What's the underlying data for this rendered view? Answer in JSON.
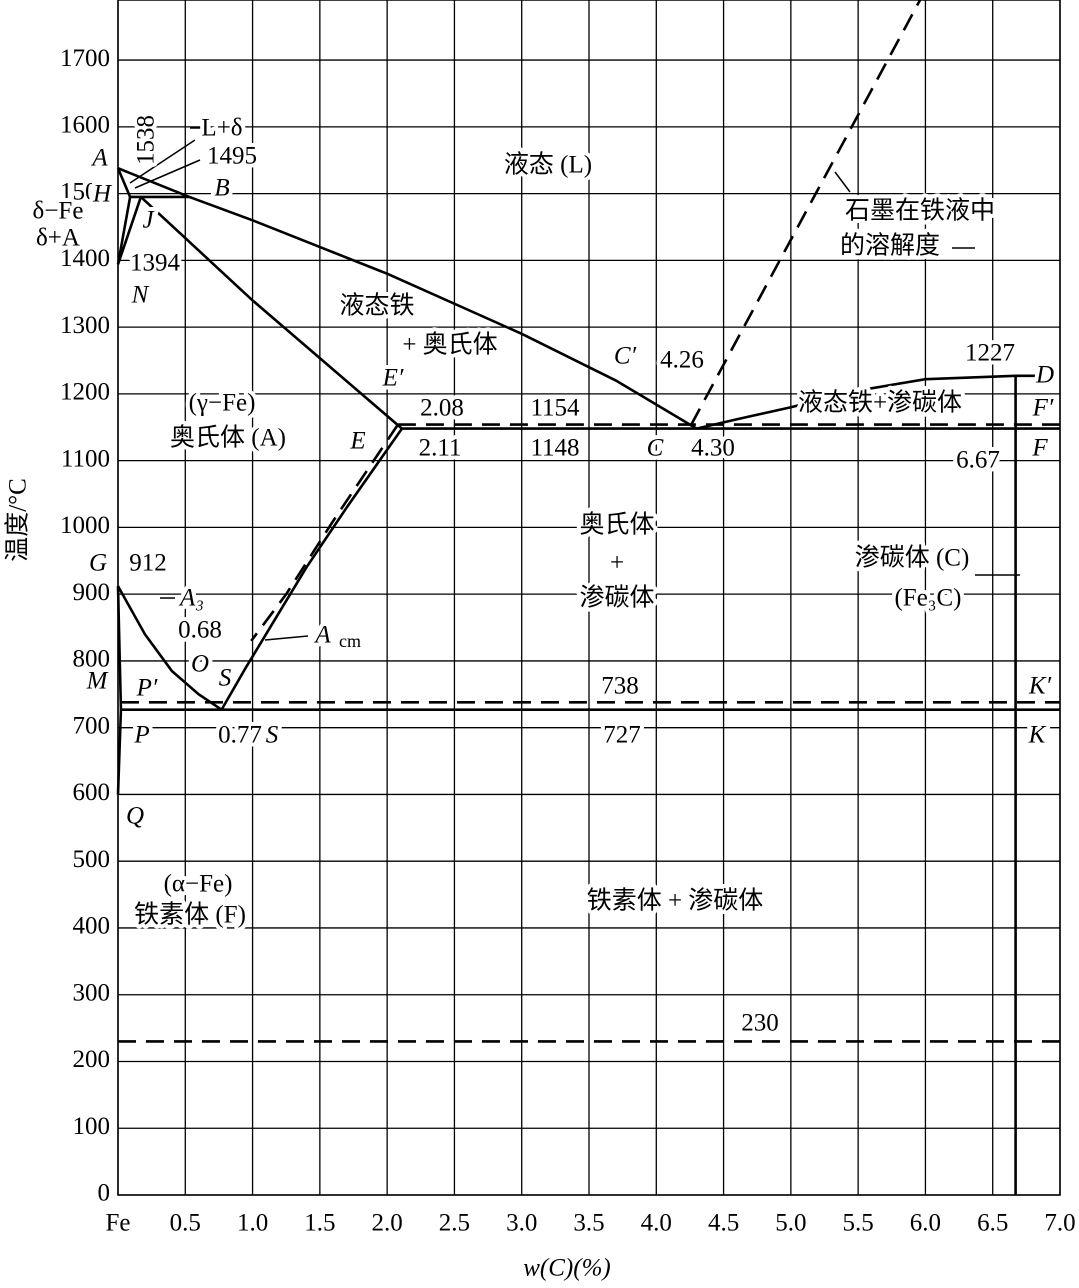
{
  "chart_data": {
    "type": "line",
    "x_label": "w(C)(%)",
    "y_label": "温度/°C",
    "xlim": [
      0,
      7
    ],
    "ylim": [
      0,
      1790
    ],
    "xticks": [
      {
        "value": 0,
        "label": "Fe"
      },
      0.5,
      {
        "value": 1,
        "label": "1.0"
      },
      1.5,
      {
        "value": 2,
        "label": "2.0"
      },
      2.5,
      {
        "value": 3,
        "label": "3.0"
      },
      3.5,
      {
        "value": 4,
        "label": "4.0"
      },
      4.5,
      {
        "value": 5,
        "label": "5.0"
      },
      5.5,
      {
        "value": 6,
        "label": "6.0"
      },
      6.5,
      {
        "value": 7,
        "label": "7.0"
      }
    ],
    "yticks": [
      0,
      100,
      200,
      300,
      400,
      500,
      600,
      700,
      800,
      900,
      1000,
      1100,
      1200,
      1300,
      1400,
      1500,
      1600,
      1700
    ],
    "grid": true,
    "color": "#000000",
    "lines": [
      {
        "dashed": false,
        "x": [
          0,
          0.09
        ],
        "y": [
          1538,
          1495
        ]
      },
      {
        "dashed": false,
        "x": [
          0.09,
          0.53
        ],
        "y": [
          1495,
          1495
        ]
      },
      {
        "dashed": false,
        "x": [
          0.53,
          1.0,
          2.0,
          3.0,
          3.7,
          4.3
        ],
        "y": [
          1495,
          1460,
          1380,
          1290,
          1220,
          1148
        ]
      },
      {
        "dashed": false,
        "x": [
          0,
          0.53
        ],
        "y": [
          1538,
          1495
        ]
      },
      {
        "dashed": false,
        "x": [
          0.09,
          0,
          0.17
        ],
        "y": [
          1495,
          1394,
          1495
        ]
      },
      {
        "dashed": false,
        "x": [
          0.17,
          1.0,
          2.11
        ],
        "y": [
          1495,
          1340,
          1148
        ]
      },
      {
        "dashed": false,
        "x": [
          2.11,
          7
        ],
        "y": [
          1148,
          1148
        ]
      },
      {
        "dashed": true,
        "x": [
          2.08,
          7
        ],
        "y": [
          1154,
          1154
        ]
      },
      {
        "dashed": false,
        "x": [
          4.3,
          4.6,
          5.0,
          5.5,
          6.0,
          6.67,
          6.85
        ],
        "y": [
          1148,
          1162,
          1180,
          1205,
          1222,
          1227,
          1227
        ]
      },
      {
        "dashed": false,
        "x": [
          6.67,
          6.67
        ],
        "y": [
          1227,
          0
        ]
      },
      {
        "dashed": true,
        "x": [
          4.26,
          5.96
        ],
        "y": [
          1154,
          1790
        ]
      },
      {
        "dashed": false,
        "x": [
          0,
          0.2,
          0.4,
          0.6,
          0.77
        ],
        "y": [
          912,
          840,
          785,
          750,
          727
        ]
      },
      {
        "dashed": false,
        "x": [
          0,
          0.0218,
          0
        ],
        "y": [
          912,
          727,
          600
        ]
      },
      {
        "dashed": false,
        "x": [
          2.11,
          1.7,
          1.4,
          1.1,
          0.95,
          0.77
        ],
        "y": [
          1148,
          1030,
          940,
          840,
          790,
          727
        ]
      },
      {
        "dashed": true,
        "x": [
          2.08,
          1.6,
          1.25,
          0.99
        ],
        "y": [
          1154,
          1010,
          900,
          830
        ]
      },
      {
        "dashed": false,
        "x": [
          0.0218,
          7
        ],
        "y": [
          727,
          727
        ]
      },
      {
        "dashed": true,
        "x": [
          0.0218,
          7
        ],
        "y": [
          738,
          738
        ]
      },
      {
        "dashed": true,
        "x": [
          0,
          7
        ],
        "y": [
          230,
          230
        ]
      }
    ],
    "annotations": [
      "A",
      "1538",
      "L+δ",
      "1495",
      "H",
      "B",
      "δ−Fe",
      "J",
      "δ+A",
      "1394",
      "N",
      "液态 (L)",
      "石墨在铁液中",
      "的溶解度",
      "液态铁",
      "+ 奥氏体",
      "C′",
      "4.26",
      "1227",
      "D",
      "E′",
      "(γ−Fe)",
      "2.08",
      "1154",
      "液态铁+渗碳体",
      "F′",
      "奥氏体 (A)",
      "E",
      "2.11",
      "1148",
      "C",
      "4.30",
      "6.67",
      "F",
      "奥氏体",
      "+",
      "渗碳体",
      "渗碳体 (C)",
      "(Fe₃C)",
      "G",
      "912",
      "A₃",
      "0.68",
      "A",
      "cm",
      "O",
      "M",
      "P′",
      "S",
      "738",
      "K′",
      "P",
      "0.77",
      "S",
      "727",
      "K",
      "Q",
      "(α−Fe)",
      "铁素体 (F)",
      "铁素体 + 渗碳体",
      "230"
    ]
  }
}
